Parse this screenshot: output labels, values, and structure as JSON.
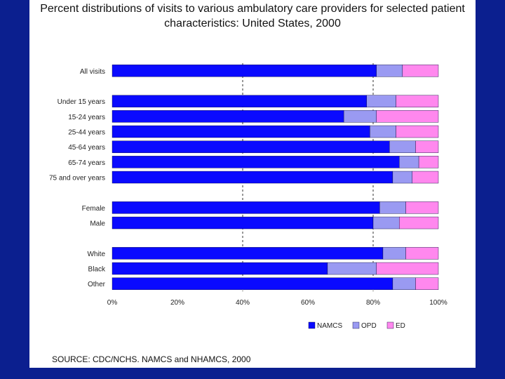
{
  "title_line1": "Percent distributions of visits to various ambulatory care providers for selected patient",
  "title_line2": "characteristics: United States, 2000",
  "source": "SOURCE: CDC/NCHS. NAMCS and NHAMCS, 2000",
  "colors": {
    "namcs": "#0a0aff",
    "opd": "#9a9af2",
    "ed": "#ff88ee",
    "frame": "#0b1f8f"
  },
  "chart_data": {
    "type": "bar",
    "orientation": "horizontal",
    "stacked": true,
    "categories": [
      "All visits",
      "",
      "Under 15 years",
      "15-24 years",
      "25-44 years",
      "45-64 years",
      "65-74 years",
      "75 and over years",
      "",
      "Female",
      "Male",
      "",
      "White",
      "Black",
      "Other"
    ],
    "series": [
      {
        "name": "NAMCS",
        "values": [
          81,
          null,
          78,
          71,
          79,
          85,
          88,
          86,
          null,
          82,
          80,
          null,
          83,
          66,
          86
        ]
      },
      {
        "name": "OPD",
        "values": [
          8,
          null,
          9,
          10,
          8,
          8,
          6,
          6,
          null,
          8,
          8,
          null,
          7,
          15,
          7
        ]
      },
      {
        "name": "ED",
        "values": [
          11,
          null,
          13,
          19,
          13,
          7,
          6,
          8,
          null,
          10,
          12,
          null,
          10,
          19,
          7
        ]
      }
    ],
    "xticks": [
      "0%",
      "20%",
      "40%",
      "60%",
      "80%",
      "100%"
    ],
    "xlim": [
      0,
      100
    ],
    "grid": "dashed vertical lines at 40% and 80%",
    "legend_position": "bottom-right"
  }
}
